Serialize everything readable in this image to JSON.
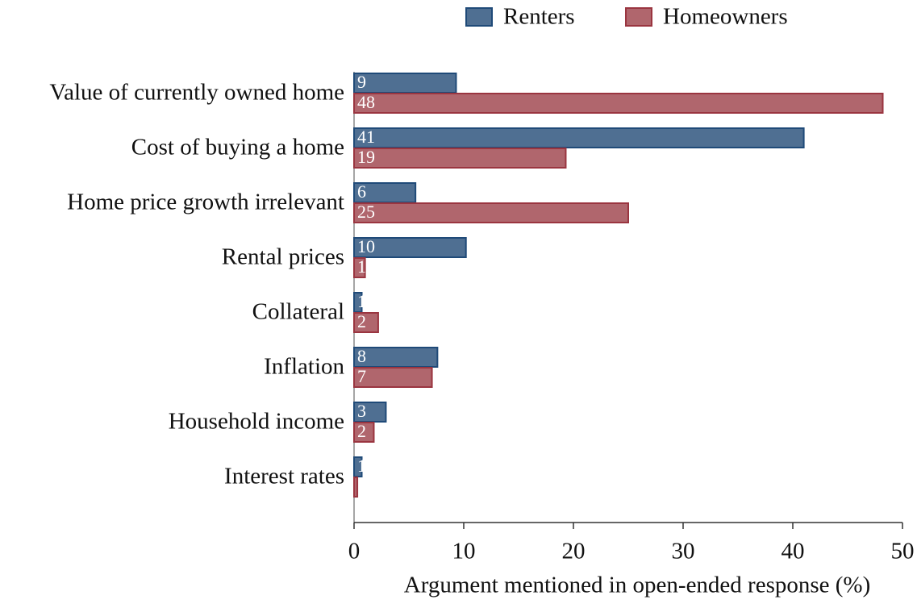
{
  "chart_data": {
    "type": "hbar",
    "xlabel": "Argument mentioned in open-ended response (%)",
    "categories": [
      "Value of currently owned home",
      "Cost of buying a home",
      "Home price growth irrelevant",
      "Rental prices",
      "Collateral",
      "Inflation",
      "Household income",
      "Interest rates"
    ],
    "series": [
      {
        "name": "Renters",
        "color": "#4f6f92",
        "edge": "#1f4a78",
        "values": [
          9.3,
          41.0,
          5.6,
          10.2,
          0.7,
          7.6,
          2.9,
          0.7
        ],
        "value_labels": [
          "9",
          "41",
          "6",
          "10",
          "1",
          "8",
          "3",
          "1"
        ]
      },
      {
        "name": "Homeowners",
        "color": "#b0666d",
        "edge": "#9a3540",
        "values": [
          48.2,
          19.3,
          25.0,
          1.0,
          2.2,
          7.1,
          1.8,
          0.3
        ],
        "value_labels": [
          "48",
          "19",
          "25",
          "1",
          "2",
          "7",
          "2",
          null
        ]
      }
    ],
    "xlim": [
      0,
      50
    ],
    "xticks": [
      0,
      10,
      20,
      30,
      40,
      50
    ],
    "grid": false,
    "legend": "top"
  }
}
